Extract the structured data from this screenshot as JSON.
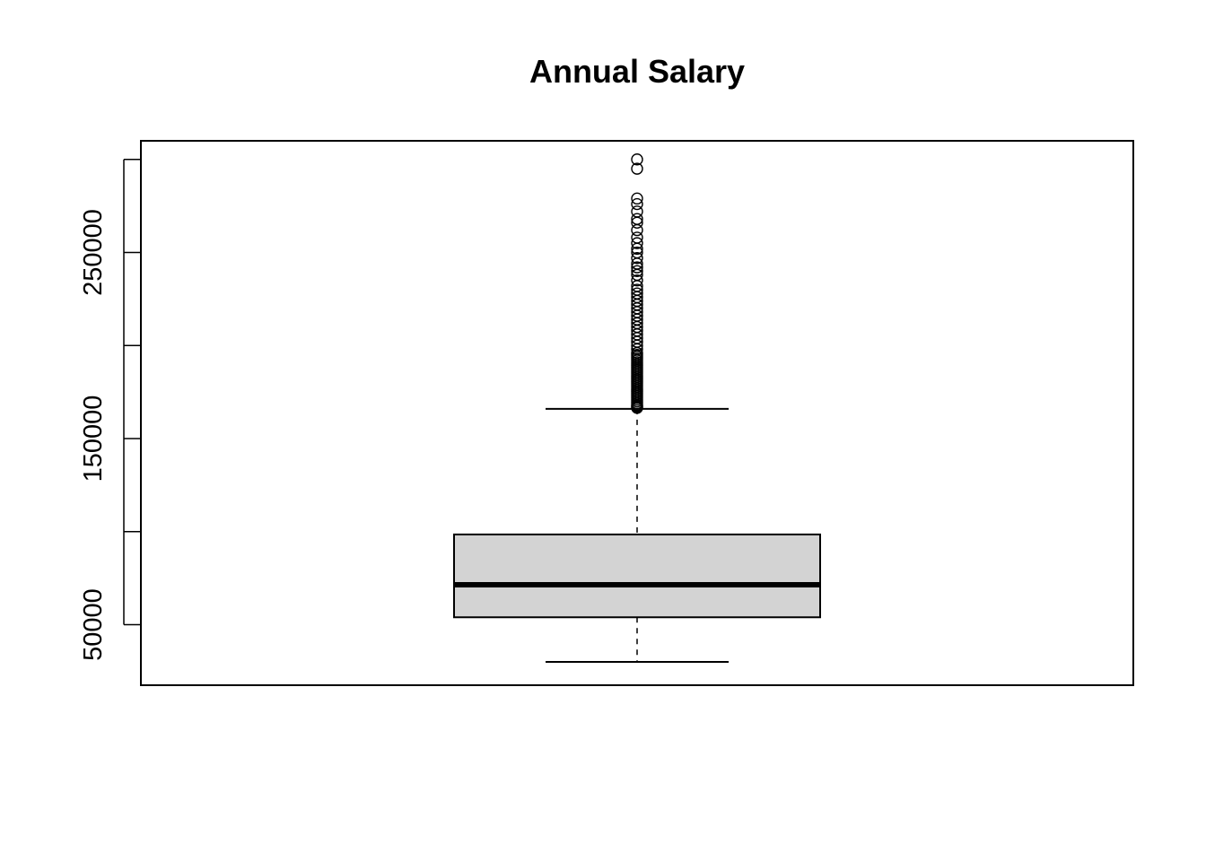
{
  "chart_data": {
    "type": "boxplot",
    "title": "Annual Salary",
    "xlabel": "",
    "ylabel": "",
    "ylim": [
      17500,
      310000
    ],
    "yticks": [
      50000,
      100000,
      150000,
      200000,
      250000,
      300000
    ],
    "ytick_labels": [
      "50000",
      "",
      "150000",
      "",
      "250000",
      ""
    ],
    "grid": false,
    "legend": "none",
    "box": {
      "whisker_low": 30000,
      "q1": 54000,
      "median": 71500,
      "q3": 98500,
      "whisker_high": 166000,
      "fill": "#d3d3d3",
      "outliers": [
        166500,
        167000,
        167500,
        168000,
        169000,
        170000,
        171000,
        172000,
        173000,
        174000,
        175000,
        176000,
        177000,
        178000,
        179000,
        180000,
        181000,
        182000,
        183000,
        184000,
        185000,
        186000,
        187000,
        188000,
        189000,
        190000,
        191000,
        192000,
        193000,
        194000,
        195000,
        196000,
        198000,
        200000,
        202000,
        204000,
        206000,
        208000,
        210000,
        212000,
        214000,
        216000,
        218000,
        220000,
        222000,
        224000,
        226000,
        228000,
        230000,
        232000,
        235000,
        238000,
        240000,
        242000,
        244000,
        247000,
        250000,
        252000,
        255000,
        258000,
        262000,
        266000,
        268000,
        272000,
        276000,
        279000,
        295000,
        300000
      ]
    }
  }
}
